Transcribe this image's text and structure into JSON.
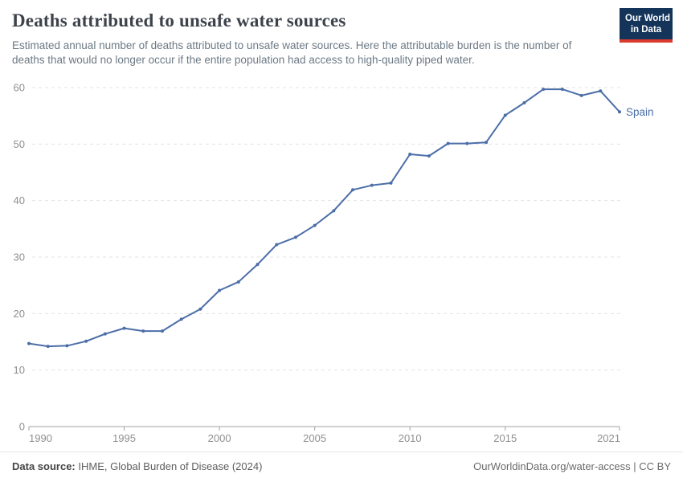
{
  "header": {
    "title": "Deaths attributed to unsafe water sources",
    "subtitle": "Estimated annual number of deaths attributed to unsafe water sources. Here the attributable burden is the number of deaths that would no longer occur if the entire population had access to high-quality piped water.",
    "logo": {
      "line1": "Our World",
      "line2": "in Data",
      "bg_color": "#14345a",
      "accent_color": "#dc3a2f"
    }
  },
  "chart_data": {
    "type": "line",
    "title": "Deaths attributed to unsafe water sources",
    "entity": "Spain",
    "x": [
      1990,
      1991,
      1992,
      1993,
      1994,
      1995,
      1996,
      1997,
      1998,
      1999,
      2000,
      2001,
      2002,
      2003,
      2004,
      2005,
      2006,
      2007,
      2008,
      2009,
      2010,
      2011,
      2012,
      2013,
      2014,
      2015,
      2016,
      2017,
      2018,
      2019,
      2020,
      2021
    ],
    "series": [
      {
        "name": "Spain",
        "color": "#4c6ea8",
        "values": [
          14.7,
          14.2,
          14.3,
          15.1,
          16.4,
          17.4,
          16.9,
          16.9,
          19.0,
          20.8,
          24.1,
          25.6,
          28.7,
          32.2,
          33.5,
          35.6,
          38.2,
          41.9,
          42.7,
          43.1,
          48.2,
          47.9,
          50.1,
          50.1,
          50.3,
          55.1,
          57.3,
          59.7,
          59.7,
          58.6,
          59.4,
          55.7
        ]
      }
    ],
    "xlabel": "",
    "ylabel": "",
    "xlim": [
      1990,
      2021
    ],
    "ylim": [
      0,
      60
    ],
    "x_ticks": [
      1990,
      1995,
      2000,
      2005,
      2010,
      2015,
      2021
    ],
    "y_ticks": [
      0,
      10,
      20,
      30,
      40,
      50,
      60
    ],
    "grid": "horizontal-dashed",
    "legend_position": "line-end-label",
    "colors": {
      "grid": "#e3e3e3",
      "axis": "#a3a3a3",
      "tick_label": "#8f8f8f"
    }
  },
  "footer": {
    "source_label": "Data source:",
    "source_text": " IHME, Global Burden of Disease (2024)",
    "credit": "OurWorldinData.org/water-access | CC BY"
  }
}
